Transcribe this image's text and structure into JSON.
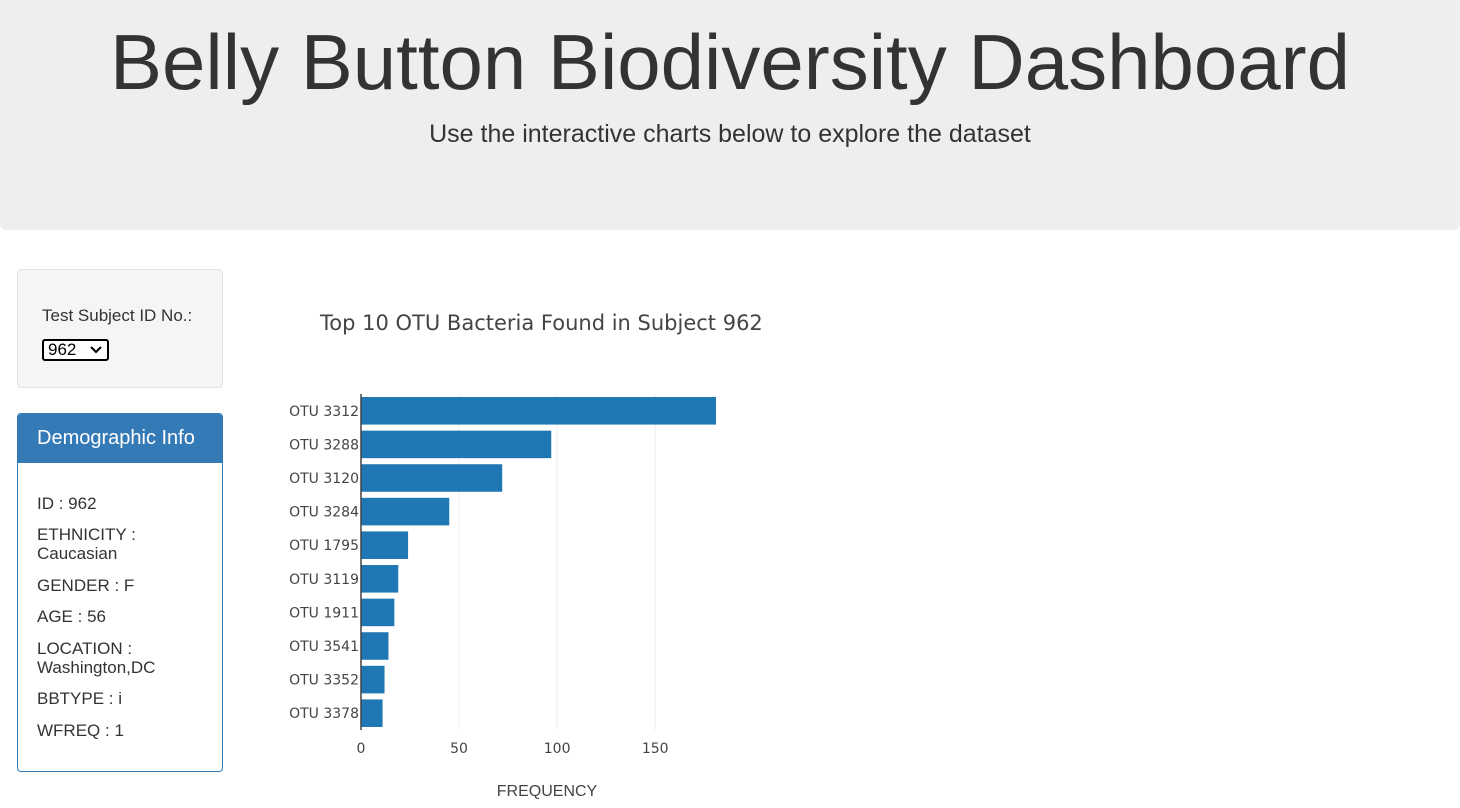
{
  "header": {
    "title": "Belly Button Biodiversity Dashboard",
    "subtitle": "Use the interactive charts below to explore the dataset"
  },
  "selector": {
    "label": "Test Subject ID No.:",
    "selected": "962"
  },
  "demographics": {
    "heading": "Demographic Info",
    "lines": [
      "ID : 962",
      "ETHNICITY : Caucasian",
      "GENDER : F",
      "AGE : 56",
      "LOCATION : Washington,DC",
      "BBTYPE : i",
      "WFREQ : 1"
    ]
  },
  "colors": {
    "bar": "#1f77b4",
    "panel_accent": "#337ab7"
  },
  "chart_data": {
    "type": "bar",
    "orientation": "horizontal",
    "title": "Top 10 OTU Bacteria Found in Subject 962",
    "xlabel": "FREQUENCY",
    "ylabel": "",
    "categories": [
      "OTU 3312",
      "OTU 3288",
      "OTU 3120",
      "OTU 3284",
      "OTU 1795",
      "OTU 3119",
      "OTU 1911",
      "OTU 3541",
      "OTU 3352",
      "OTU 3378"
    ],
    "values": [
      181,
      97,
      72,
      45,
      24,
      19,
      17,
      14,
      12,
      11
    ],
    "xlim": [
      0,
      181
    ],
    "xticks": [
      0,
      50,
      100,
      150
    ],
    "grid": true
  }
}
